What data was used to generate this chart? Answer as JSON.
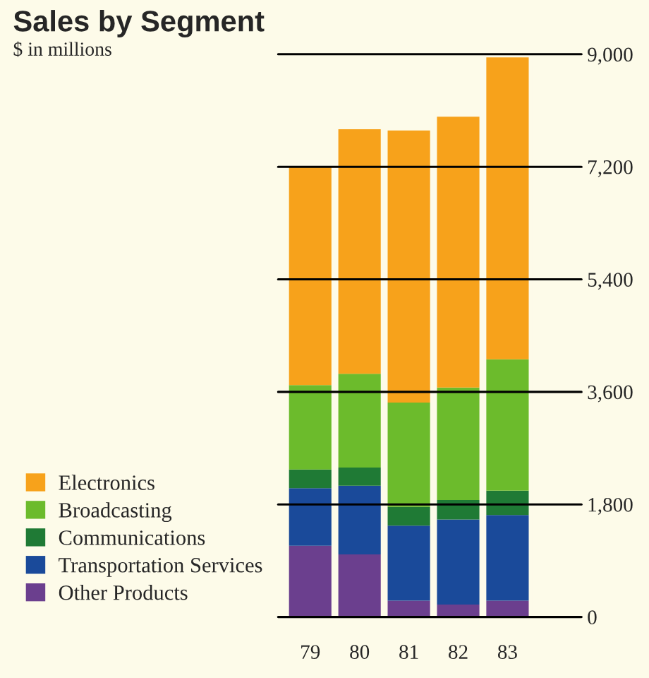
{
  "chart_data": {
    "type": "bar",
    "title": "Sales by Segment",
    "subtitle": "$ in millions",
    "stacked": true,
    "categories": [
      "79",
      "80",
      "81",
      "82",
      "83"
    ],
    "series": [
      {
        "name": "Other Products",
        "color": "#6b3f8e",
        "values": [
          1140,
          1000,
          260,
          200,
          260
        ]
      },
      {
        "name": "Transportation Services",
        "color": "#1a4a9a",
        "values": [
          920,
          1100,
          1200,
          1360,
          1370
        ]
      },
      {
        "name": "Communications",
        "color": "#1f7a35",
        "values": [
          300,
          290,
          300,
          310,
          390
        ]
      },
      {
        "name": "Broadcasting",
        "color": "#6cbb2c",
        "values": [
          1350,
          1500,
          1670,
          1800,
          2100
        ]
      },
      {
        "name": "Electronics",
        "color": "#f7a21b",
        "values": [
          3490,
          3910,
          4350,
          4330,
          4830
        ]
      }
    ],
    "ylim": [
      0,
      9000
    ],
    "yticks": [
      0,
      {
        "value": 1800,
        "label": "1,800"
      },
      {
        "value": 3600,
        "label": "3,600"
      },
      {
        "value": 5400,
        "label": "5,400"
      },
      {
        "value": 7200,
        "label": "7,200"
      },
      {
        "value": 9000,
        "label": "9,000"
      }
    ],
    "grid": "y",
    "legend": "bottom left"
  }
}
